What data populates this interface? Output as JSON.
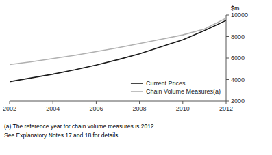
{
  "chart_data": {
    "type": "line",
    "y_label": "$m",
    "x": [
      2002,
      2003,
      2004,
      2005,
      2006,
      2007,
      2008,
      2009,
      2010,
      2011,
      2012
    ],
    "series": [
      {
        "name": "Current Prices",
        "color": "#1a1a1a",
        "values": [
          3800,
          4150,
          4500,
          4900,
          5350,
          5850,
          6400,
          7050,
          7700,
          8550,
          9500
        ]
      },
      {
        "name": "Chain Volume Measures(a)",
        "color": "#b0b0b0",
        "values": [
          5400,
          5650,
          5950,
          6250,
          6600,
          6950,
          7350,
          7750,
          8150,
          8700,
          9700
        ]
      }
    ],
    "xlim": [
      2002,
      2012
    ],
    "ylim": [
      2000,
      10000
    ],
    "xticks": [
      2002,
      2004,
      2006,
      2008,
      2010,
      2012
    ],
    "yticks": [
      2000,
      4000,
      6000,
      8000,
      10000
    ],
    "grid": false,
    "legend": "lower right",
    "annotations": [
      "(a) The reference year for chain volume measures is 2012.",
      "See Explanatory Notes 17 and 18 for details."
    ]
  }
}
